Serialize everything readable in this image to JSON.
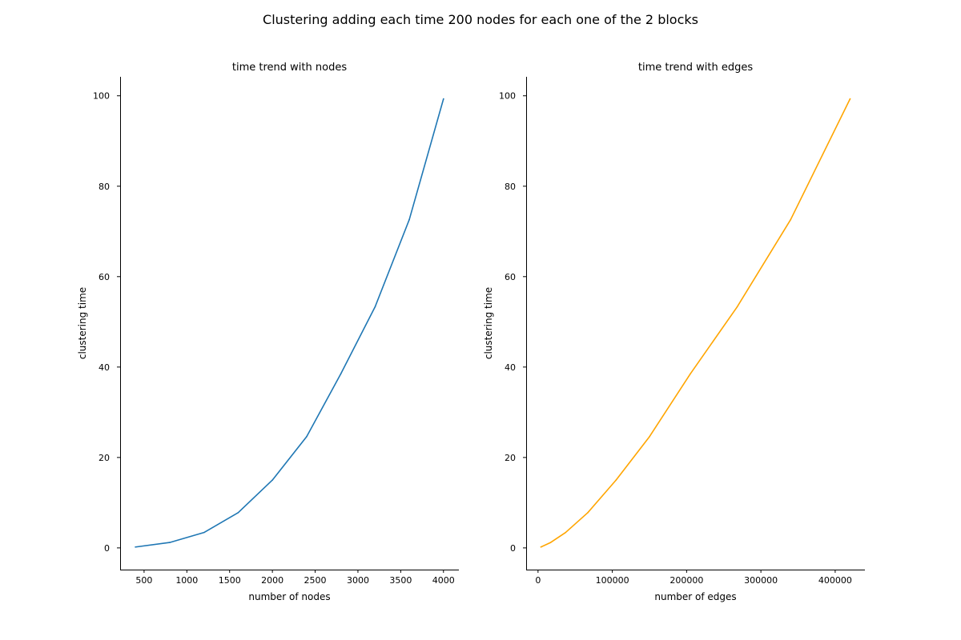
{
  "figure": {
    "suptitle": "Clustering adding each time 200 nodes for each one of the 2 blocks"
  },
  "chart_data": [
    {
      "type": "line",
      "title": "time trend with nodes",
      "xlabel": "number of nodes",
      "ylabel": "clustering time",
      "xlim": [
        220,
        4180
      ],
      "ylim": [
        -4.8,
        104.2
      ],
      "xticks": [
        500,
        1000,
        1500,
        2000,
        2500,
        3000,
        3500,
        4000
      ],
      "xtick_labels": [
        "500",
        "1000",
        "1500",
        "2000",
        "2500",
        "3000",
        "3500",
        "4000"
      ],
      "yticks": [
        0,
        20,
        40,
        60,
        80,
        100
      ],
      "ytick_labels": [
        "0",
        "20",
        "40",
        "60",
        "80",
        "100"
      ],
      "grid": false,
      "series": [
        {
          "color": "#1f77b4",
          "x": [
            400,
            800,
            1200,
            1600,
            2000,
            2400,
            2800,
            3200,
            3600,
            4000
          ],
          "y": [
            0.2,
            1.2,
            3.4,
            7.8,
            15.0,
            24.6,
            38.5,
            53.3,
            72.6,
            99.3
          ]
        }
      ]
    },
    {
      "type": "line",
      "title": "time trend with edges",
      "xlabel": "number of edges",
      "ylabel": "clustering time",
      "xlim": [
        -16000,
        440000
      ],
      "ylim": [
        -4.8,
        104.2
      ],
      "xticks": [
        0,
        100000,
        200000,
        300000,
        400000
      ],
      "xtick_labels": [
        "0",
        "100000",
        "200000",
        "300000",
        "400000"
      ],
      "yticks": [
        0,
        20,
        40,
        60,
        80,
        100
      ],
      "ytick_labels": [
        "0",
        "20",
        "40",
        "60",
        "80",
        "100"
      ],
      "grid": false,
      "series": [
        {
          "color": "#ffa500",
          "x": [
            4000,
            17000,
            37000,
            67000,
            105000,
            150000,
            205000,
            268000,
            340000,
            420000
          ],
          "y": [
            0.2,
            1.2,
            3.4,
            7.8,
            15.0,
            24.6,
            38.5,
            53.3,
            72.6,
            99.3
          ]
        }
      ]
    }
  ]
}
